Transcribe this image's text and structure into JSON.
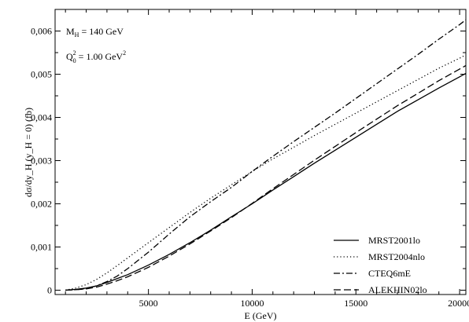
{
  "chart_data": {
    "type": "line",
    "title": "",
    "xlabel": "E (GeV)",
    "ylabel": "dσ/dy_H (y_H = 0) (fb)",
    "xlim": [
      500,
      20300
    ],
    "ylim": [
      -0.0001,
      0.0065
    ],
    "x_ticks": [
      5000,
      10000,
      15000,
      20000
    ],
    "x_tick_labels": [
      "5000",
      "10000",
      "15000",
      "20000"
    ],
    "y_ticks": [
      0,
      0.001,
      0.002,
      0.003,
      0.004,
      0.005,
      0.006
    ],
    "y_tick_labels": [
      "0",
      "0,001",
      "0,002",
      "0,003",
      "0,004",
      "0,005",
      "0,006"
    ],
    "grid": false,
    "legend_position": "bottom-right",
    "annotations": {
      "mass_label": "M",
      "mass_sub": "H",
      "mass_value": " = 140 GeV",
      "q_label": "Q",
      "q_sup": "2",
      "q_sub": "0",
      "q_value": " = 1.00 GeV",
      "q_unit_sup": "2"
    },
    "series": [
      {
        "name": "MRST2001lo",
        "dash": "solid",
        "x": [
          1000,
          1500,
          2000,
          2500,
          3000,
          3500,
          4000,
          5000,
          6000,
          7000,
          8000,
          9000,
          10000,
          11000,
          12000,
          13000,
          14000,
          15000,
          16000,
          17000,
          18000,
          19000,
          20000,
          20300
        ],
        "y": [
          0.0,
          2e-05,
          5e-05,
          0.0001,
          0.00018,
          0.00027,
          0.00036,
          0.00058,
          0.00083,
          0.0011,
          0.00139,
          0.0017,
          0.002,
          0.00232,
          0.00263,
          0.00294,
          0.00324,
          0.00354,
          0.00384,
          0.00414,
          0.00441,
          0.00468,
          0.00494,
          0.00502
        ]
      },
      {
        "name": "MRST2004nlo",
        "dash": "dotted",
        "x": [
          1000,
          1500,
          2000,
          2500,
          3000,
          3500,
          4000,
          5000,
          6000,
          7000,
          8000,
          9000,
          10000,
          11000,
          12000,
          13000,
          14000,
          15000,
          16000,
          17000,
          18000,
          19000,
          20000,
          20300
        ],
        "y": [
          0.0,
          5e-05,
          0.00013,
          0.00025,
          0.0004,
          0.00057,
          0.00075,
          0.0011,
          0.00145,
          0.0018,
          0.00213,
          0.00244,
          0.00275,
          0.00304,
          0.00331,
          0.00358,
          0.00384,
          0.0041,
          0.00436,
          0.00462,
          0.00488,
          0.00514,
          0.00537,
          0.00545
        ]
      },
      {
        "name": "CTEQ6mE",
        "dash": "dash-dot",
        "x": [
          1000,
          1500,
          2000,
          2500,
          3000,
          3500,
          4000,
          5000,
          6000,
          7000,
          8000,
          9000,
          10000,
          11000,
          12000,
          13000,
          14000,
          15000,
          16000,
          17000,
          18000,
          19000,
          20000,
          20300
        ],
        "y": [
          0.0,
          1e-05,
          4e-05,
          0.0001,
          0.0002,
          0.00033,
          0.0005,
          0.00088,
          0.0013,
          0.0017,
          0.00205,
          0.00238,
          0.00275,
          0.0031,
          0.00344,
          0.00377,
          0.0041,
          0.00444,
          0.00478,
          0.00512,
          0.00546,
          0.00581,
          0.00615,
          0.00626
        ]
      },
      {
        "name": "ALEKHIN02lo",
        "dash": "dashed",
        "x": [
          1000,
          1500,
          2000,
          2500,
          3000,
          3500,
          4000,
          5000,
          6000,
          7000,
          8000,
          9000,
          10000,
          11000,
          12000,
          13000,
          14000,
          15000,
          16000,
          17000,
          18000,
          19000,
          20000,
          20300
        ],
        "y": [
          0.0,
          1e-05,
          3e-05,
          7e-05,
          0.00014,
          0.00022,
          0.00031,
          0.00053,
          0.00079,
          0.00107,
          0.00137,
          0.00168,
          0.00201,
          0.00235,
          0.00268,
          0.00301,
          0.00333,
          0.00365,
          0.00396,
          0.00427,
          0.00456,
          0.00485,
          0.00512,
          0.0052
        ]
      }
    ]
  }
}
